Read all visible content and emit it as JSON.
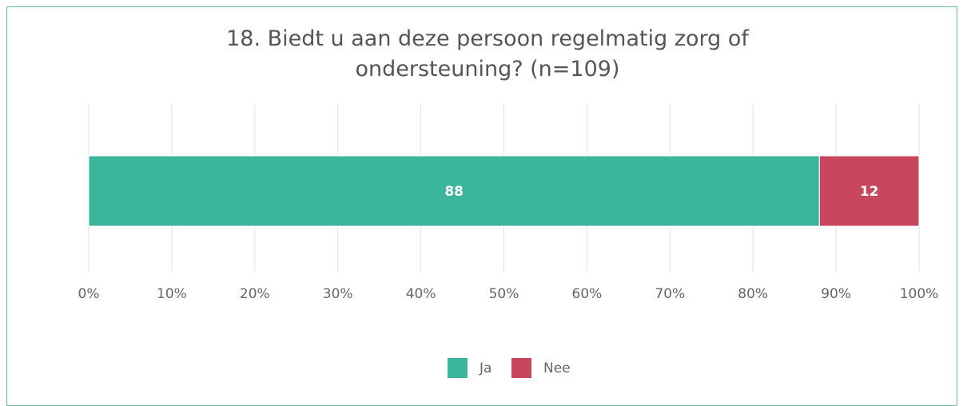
{
  "chart_data": {
    "type": "stacked_barh",
    "title": "18. Biedt u aan deze persoon regelmatig zorg of ondersteuning? (n=109)",
    "series": [
      {
        "name": "Ja",
        "color": "#3bb59b",
        "values": [
          88
        ]
      },
      {
        "name": "Nee",
        "color": "#c8475f",
        "values": [
          12
        ]
      }
    ],
    "xlim": [
      0,
      100
    ],
    "xticks": [
      {
        "value": 0,
        "label": "0%"
      },
      {
        "value": 10,
        "label": "10%"
      },
      {
        "value": 20,
        "label": "20%"
      },
      {
        "value": 30,
        "label": "30%"
      },
      {
        "value": 40,
        "label": "40%"
      },
      {
        "value": 50,
        "label": "50%"
      },
      {
        "value": 60,
        "label": "60%"
      },
      {
        "value": 70,
        "label": "70%"
      },
      {
        "value": 80,
        "label": "80%"
      },
      {
        "value": 90,
        "label": "90%"
      },
      {
        "value": 100,
        "label": "100%"
      }
    ],
    "grid": true,
    "legend": "bottom"
  }
}
